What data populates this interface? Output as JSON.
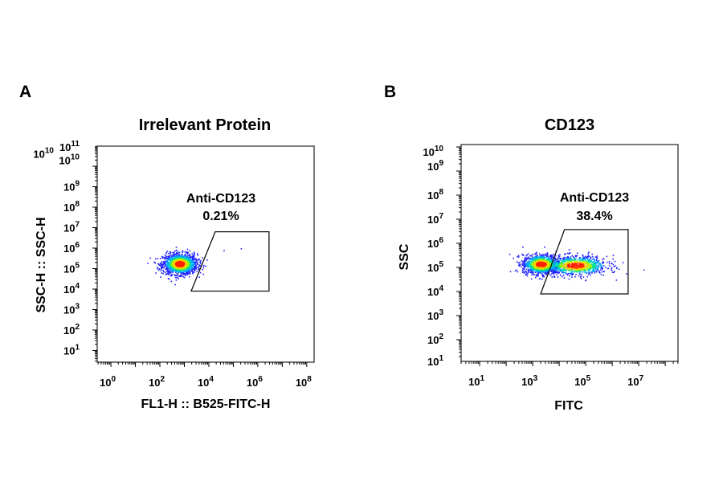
{
  "chart_data": [
    {
      "panel": "A",
      "type": "scatter",
      "subtype": "flow-cytometry-density-plot",
      "title": "Irrelevant Protein",
      "xlabel": "FL1-H :: B525-FITC-H",
      "ylabel": "SSC-H :: SSC-H",
      "xscale": "log",
      "yscale": "log",
      "xlim_log10": [
        -0.56,
        8.3
      ],
      "ylim_log10": [
        0.43,
        10.98
      ],
      "xticks": [
        {
          "base": "10",
          "exp": "0",
          "v": 0
        },
        {
          "base": "10",
          "exp": "2",
          "v": 2
        },
        {
          "base": "10",
          "exp": "4",
          "v": 4
        },
        {
          "base": "10",
          "exp": "6",
          "v": 6
        },
        {
          "base": "10",
          "exp": "8",
          "v": 8
        }
      ],
      "yticks": [
        {
          "base": "10",
          "exp": "1",
          "v": 1
        },
        {
          "base": "10",
          "exp": "2",
          "v": 2
        },
        {
          "base": "10",
          "exp": "3",
          "v": 3
        },
        {
          "base": "10",
          "exp": "4",
          "v": 4
        },
        {
          "base": "10",
          "exp": "5",
          "v": 5
        },
        {
          "base": "10",
          "exp": "6",
          "v": 6
        },
        {
          "base": "10",
          "exp": "7",
          "v": 7
        },
        {
          "base": "10",
          "exp": "8",
          "v": 8
        },
        {
          "base": "10",
          "exp": "9",
          "v": 9
        },
        {
          "base": "10",
          "exp": "10",
          "v": 10.3
        },
        {
          "base": "10",
          "exp": "10",
          "v": 10.6
        },
        {
          "base": "10",
          "exp": "11",
          "v": 10.95
        }
      ],
      "gate": {
        "name": "Anti-CD123",
        "percent": "0.21%",
        "polygon_log10": [
          [
            4.26,
            6.8
          ],
          [
            6.46,
            6.8
          ],
          [
            6.46,
            3.9
          ],
          [
            3.28,
            3.9
          ]
        ]
      },
      "populations": [
        {
          "center_log10": [
            2.8,
            5.25
          ],
          "spread_log10": [
            0.35,
            0.25
          ],
          "events": 1400
        }
      ],
      "outliers_log10": [
        [
          4.6,
          5.9
        ],
        [
          5.3,
          6.0
        ]
      ],
      "grid": false
    },
    {
      "panel": "B",
      "type": "scatter",
      "subtype": "flow-cytometry-density-plot",
      "title": "CD123",
      "xlabel": "FITC",
      "ylabel": "SSC",
      "xscale": "log",
      "yscale": "log",
      "xlim_log10": [
        0.3,
        8.48
      ],
      "ylim_log10": [
        1.1,
        10.1
      ],
      "xticks": [
        {
          "base": "10",
          "exp": "1",
          "v": 1
        },
        {
          "base": "10",
          "exp": "3",
          "v": 3
        },
        {
          "base": "10",
          "exp": "5",
          "v": 5
        },
        {
          "base": "10",
          "exp": "7",
          "v": 7
        }
      ],
      "yticks": [
        {
          "base": "10",
          "exp": "1",
          "v": 1.1
        },
        {
          "base": "10",
          "exp": "2",
          "v": 2
        },
        {
          "base": "10",
          "exp": "3",
          "v": 3
        },
        {
          "base": "10",
          "exp": "4",
          "v": 4
        },
        {
          "base": "10",
          "exp": "5",
          "v": 5
        },
        {
          "base": "10",
          "exp": "6",
          "v": 6
        },
        {
          "base": "10",
          "exp": "7",
          "v": 7
        },
        {
          "base": "10",
          "exp": "8",
          "v": 8
        },
        {
          "base": "10",
          "exp": "9",
          "v": 9.2
        },
        {
          "base": "10",
          "exp": "10",
          "v": 9.8
        }
      ],
      "gate": {
        "name": "Anti-CD123",
        "percent": "38.4%",
        "polygon_log10": [
          [
            4.2,
            6.57
          ],
          [
            6.6,
            6.57
          ],
          [
            6.6,
            3.9
          ],
          [
            3.3,
            3.9
          ]
        ]
      },
      "populations": [
        {
          "center_log10": [
            3.3,
            5.15
          ],
          "spread_log10": [
            0.35,
            0.2
          ],
          "events": 1100
        },
        {
          "center_log10": [
            4.6,
            5.1
          ],
          "spread_log10": [
            0.6,
            0.2
          ],
          "events": 900
        }
      ],
      "grid": false
    }
  ],
  "colors": {
    "axis": "#000000",
    "density": [
      "#2020ff",
      "#00a0ff",
      "#00e0a0",
      "#a0f000",
      "#ffd000",
      "#ff2000"
    ]
  }
}
